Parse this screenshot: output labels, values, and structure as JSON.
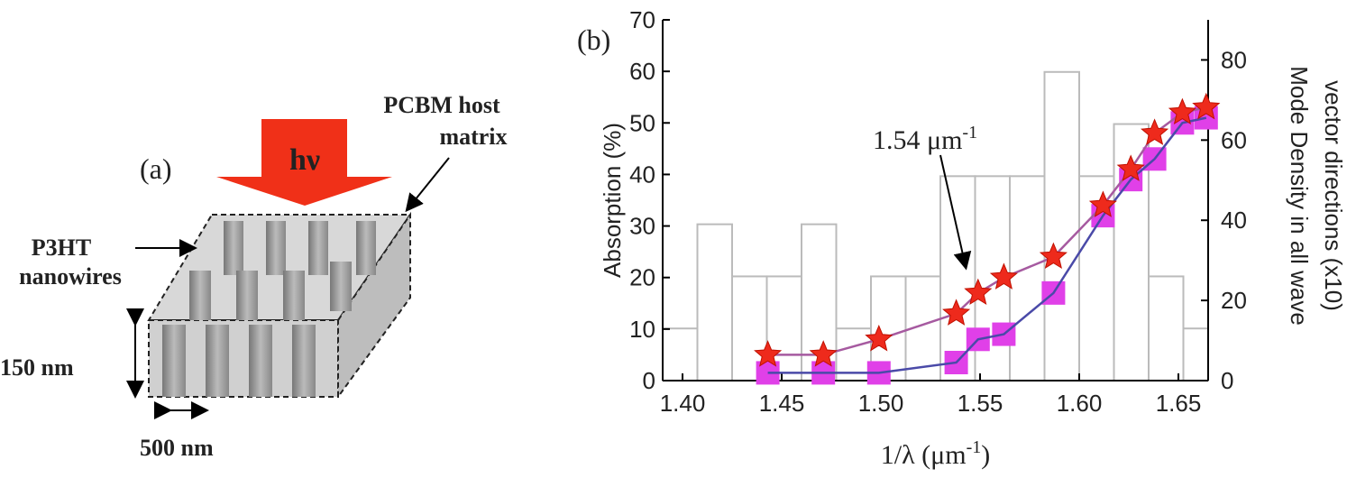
{
  "panel_a": {
    "label": "(a)",
    "arrow_text": "hν",
    "host_label": [
      "PCBM host",
      "matrix"
    ],
    "wire_label": [
      "P3HT",
      "nanowires"
    ],
    "height_label": "150 nm",
    "width_label": "500 nm"
  },
  "chart_data": {
    "type": "line",
    "panel_label": "(b)",
    "x_label": {
      "text": "1/λ (μm",
      "sup": "-1",
      "close": ")"
    },
    "y_label": "Absorption (%)",
    "y2_label": [
      "Mode Density in all wave",
      "vector directions (x10)"
    ],
    "annotation": {
      "text": "1.54 μm",
      "sup": "-1",
      "x": 1.54,
      "y": 20
    },
    "xlim": [
      1.39,
      1.665
    ],
    "xticks": [
      {
        "value": 1.4,
        "label": "1.40"
      },
      1.45,
      {
        "value": 1.5,
        "label": "1.50"
      },
      1.55,
      {
        "value": 1.6,
        "label": "1.60"
      },
      1.65
    ],
    "ylim": [
      0,
      70
    ],
    "yticks": [
      0,
      10,
      20,
      30,
      40,
      50,
      60,
      70
    ],
    "y2lim": [
      0,
      90
    ],
    "y2ticks": [
      0,
      20,
      40,
      60,
      80
    ],
    "histogram": {
      "axis": "y2",
      "color": "#bbbbbb",
      "bins": [
        1.39,
        1.4075,
        1.425,
        1.4425,
        1.46,
        1.4775,
        1.495,
        1.5125,
        1.53,
        1.5475,
        1.565,
        1.5825,
        1.6,
        1.6175,
        1.635,
        1.6525,
        1.665
      ],
      "values": [
        13,
        39,
        26,
        26,
        39,
        13,
        26,
        26,
        51,
        51,
        51,
        77,
        51,
        64,
        26,
        13
      ]
    },
    "series": [
      {
        "marker": "star",
        "color": "#ee2a1c",
        "line_color": "#a65aa0",
        "x": [
          1.443,
          1.471,
          1.499,
          1.538,
          1.549,
          1.562,
          1.587,
          1.612,
          1.626,
          1.638,
          1.652,
          1.664
        ],
        "values": [
          5,
          5,
          8,
          13,
          17,
          20,
          24,
          34,
          41,
          48,
          52,
          53
        ]
      },
      {
        "marker": "square",
        "color": "#e040e8",
        "line_color": "#4a4aa8",
        "x": [
          1.443,
          1.471,
          1.499,
          1.538,
          1.549,
          1.562,
          1.587,
          1.612,
          1.626,
          1.638,
          1.652,
          1.664
        ],
        "values": [
          1.5,
          1.5,
          1.5,
          3.5,
          8,
          9,
          17,
          32,
          39,
          43,
          50,
          51
        ]
      }
    ]
  }
}
